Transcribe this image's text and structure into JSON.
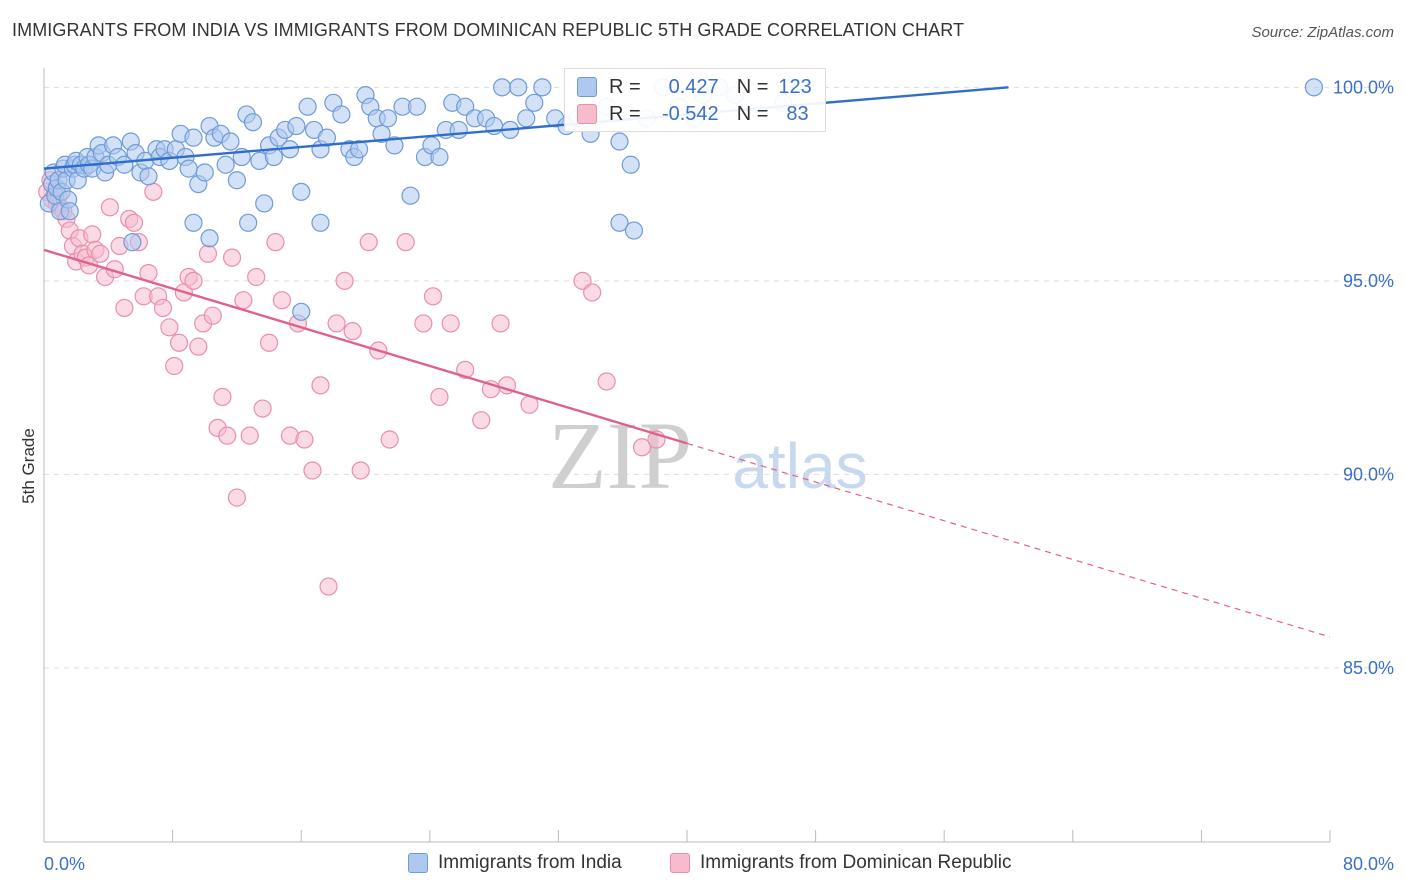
{
  "title": "IMMIGRANTS FROM INDIA VS IMMIGRANTS FROM DOMINICAN REPUBLIC 5TH GRADE CORRELATION CHART",
  "source": "Source: ZipAtlas.com",
  "watermark": {
    "zip": "ZIP",
    "atlas": "atlas"
  },
  "colors": {
    "india_fill": "#aec8f0",
    "india_stroke": "#6f9bd8",
    "india_line": "#2f6fcb",
    "dr_fill": "#f6bccd",
    "dr_stroke": "#ea8fab",
    "dr_line": "#e0628c",
    "axis_text": "#3b6fc9",
    "grid": "#dddddd"
  },
  "stats": {
    "india": {
      "r_label": "R =",
      "r_value": "0.427",
      "n_label": "N =",
      "n_value": "123"
    },
    "dr": {
      "r_label": "R =",
      "r_value": "-0.542",
      "n_label": "N =",
      "n_value": "83"
    }
  },
  "legend": {
    "india": "Immigrants from India",
    "dr": "Immigrants from Dominican Republic"
  },
  "chart_data": {
    "type": "scatter",
    "title": "IMMIGRANTS FROM INDIA VS IMMIGRANTS FROM DOMINICAN REPUBLIC 5TH GRADE CORRELATION CHART",
    "xlabel": "",
    "ylabel": "5th Grade",
    "xlim": [
      0,
      80
    ],
    "ylim": [
      80.5,
      100.5
    ],
    "x_tick_labels": [
      "0.0%",
      "80.0%"
    ],
    "y_ticks": [
      85,
      90,
      95,
      100
    ],
    "y_tick_labels": [
      "85.0%",
      "90.0%",
      "95.0%",
      "100.0%"
    ],
    "grid": true,
    "legend_position": "bottom",
    "series": [
      {
        "name": "Immigrants from India",
        "trendline": {
          "x": [
            0,
            60
          ],
          "y": [
            97.9,
            100.0
          ]
        },
        "points": [
          [
            0.3,
            97.0
          ],
          [
            0.5,
            97.5
          ],
          [
            0.6,
            97.8
          ],
          [
            0.7,
            97.2
          ],
          [
            0.8,
            97.4
          ],
          [
            0.9,
            97.6
          ],
          [
            1.0,
            96.8
          ],
          [
            1.1,
            97.3
          ],
          [
            1.2,
            97.9
          ],
          [
            1.3,
            98.0
          ],
          [
            1.4,
            97.6
          ],
          [
            1.5,
            97.1
          ],
          [
            1.6,
            96.8
          ],
          [
            1.8,
            97.9
          ],
          [
            1.9,
            98.0
          ],
          [
            2.0,
            98.1
          ],
          [
            2.1,
            97.6
          ],
          [
            2.3,
            98.0
          ],
          [
            2.5,
            97.9
          ],
          [
            2.7,
            98.2
          ],
          [
            2.8,
            98.0
          ],
          [
            3.0,
            97.9
          ],
          [
            3.2,
            98.2
          ],
          [
            3.4,
            98.5
          ],
          [
            3.6,
            98.3
          ],
          [
            3.8,
            97.8
          ],
          [
            4.0,
            98.0
          ],
          [
            4.3,
            98.5
          ],
          [
            4.6,
            98.2
          ],
          [
            5.0,
            98.0
          ],
          [
            5.4,
            98.6
          ],
          [
            5.7,
            98.3
          ],
          [
            6.0,
            97.8
          ],
          [
            6.3,
            98.1
          ],
          [
            6.5,
            97.7
          ],
          [
            7.0,
            98.4
          ],
          [
            7.2,
            98.2
          ],
          [
            7.5,
            98.4
          ],
          [
            7.8,
            98.1
          ],
          [
            8.2,
            98.4
          ],
          [
            8.5,
            98.8
          ],
          [
            8.8,
            98.2
          ],
          [
            9.0,
            97.9
          ],
          [
            9.3,
            98.7
          ],
          [
            9.6,
            97.5
          ],
          [
            10.0,
            97.8
          ],
          [
            10.3,
            99.0
          ],
          [
            10.6,
            98.7
          ],
          [
            11.0,
            98.8
          ],
          [
            11.3,
            98.0
          ],
          [
            11.6,
            98.6
          ],
          [
            12.0,
            97.6
          ],
          [
            12.3,
            98.2
          ],
          [
            12.6,
            99.3
          ],
          [
            13.0,
            99.1
          ],
          [
            13.4,
            98.1
          ],
          [
            13.7,
            97.0
          ],
          [
            14.0,
            98.5
          ],
          [
            14.3,
            98.2
          ],
          [
            14.6,
            98.7
          ],
          [
            15.0,
            98.9
          ],
          [
            15.3,
            98.4
          ],
          [
            15.7,
            99.0
          ],
          [
            16.0,
            97.3
          ],
          [
            16.4,
            99.5
          ],
          [
            16.8,
            98.9
          ],
          [
            17.2,
            98.4
          ],
          [
            17.6,
            98.7
          ],
          [
            18.0,
            99.6
          ],
          [
            18.5,
            99.3
          ],
          [
            19.0,
            98.4
          ],
          [
            19.3,
            98.2
          ],
          [
            19.6,
            98.4
          ],
          [
            20.0,
            99.8
          ],
          [
            20.3,
            99.5
          ],
          [
            20.7,
            99.2
          ],
          [
            21.0,
            98.8
          ],
          [
            21.4,
            99.2
          ],
          [
            21.8,
            98.5
          ],
          [
            22.3,
            99.5
          ],
          [
            22.8,
            97.2
          ],
          [
            23.2,
            99.5
          ],
          [
            23.7,
            98.2
          ],
          [
            24.1,
            98.5
          ],
          [
            24.6,
            98.2
          ],
          [
            25.0,
            98.9
          ],
          [
            25.4,
            99.6
          ],
          [
            25.8,
            98.9
          ],
          [
            26.2,
            99.5
          ],
          [
            26.8,
            99.2
          ],
          [
            27.5,
            99.2
          ],
          [
            28.0,
            99.0
          ],
          [
            28.5,
            100.0
          ],
          [
            29.0,
            98.9
          ],
          [
            29.5,
            100.0
          ],
          [
            30.0,
            99.2
          ],
          [
            30.5,
            99.6
          ],
          [
            31.0,
            100.0
          ],
          [
            31.8,
            99.2
          ],
          [
            32.5,
            99.0
          ],
          [
            33.2,
            99.2
          ],
          [
            34.0,
            98.8
          ],
          [
            35.0,
            99.5
          ],
          [
            35.8,
            98.6
          ],
          [
            36.5,
            98.0
          ],
          [
            37.5,
            99.2
          ],
          [
            38.5,
            100.0
          ],
          [
            39.5,
            99.5
          ],
          [
            40.5,
            99.2
          ],
          [
            41.0,
            99.8
          ],
          [
            42.0,
            100.0
          ],
          [
            43.0,
            99.8
          ],
          [
            46.0,
            99.6
          ],
          [
            47.0,
            100.0
          ],
          [
            5.5,
            96.0
          ],
          [
            9.3,
            96.5
          ],
          [
            10.3,
            96.1
          ],
          [
            12.7,
            96.5
          ],
          [
            17.2,
            96.5
          ],
          [
            35.8,
            96.5
          ],
          [
            36.7,
            96.3
          ],
          [
            16.0,
            94.2
          ],
          [
            79.0,
            100.0
          ]
        ]
      },
      {
        "name": "Immigrants from Dominican Republic",
        "trendline": {
          "x": [
            0,
            40
          ],
          "y": [
            95.8,
            90.8
          ]
        },
        "trendline_extension": {
          "x": [
            40,
            80
          ],
          "y": [
            90.8,
            85.8
          ]
        },
        "points": [
          [
            0.2,
            97.3
          ],
          [
            0.4,
            97.6
          ],
          [
            0.5,
            97.1
          ],
          [
            0.7,
            97.3
          ],
          [
            0.8,
            97.0
          ],
          [
            0.9,
            97.2
          ],
          [
            1.0,
            96.9
          ],
          [
            1.2,
            96.8
          ],
          [
            1.4,
            96.6
          ],
          [
            1.6,
            96.3
          ],
          [
            1.8,
            95.9
          ],
          [
            2.0,
            95.5
          ],
          [
            2.2,
            96.1
          ],
          [
            2.4,
            95.7
          ],
          [
            2.6,
            95.6
          ],
          [
            2.8,
            95.4
          ],
          [
            3.0,
            96.2
          ],
          [
            3.2,
            95.8
          ],
          [
            3.5,
            95.7
          ],
          [
            3.8,
            95.1
          ],
          [
            4.1,
            96.9
          ],
          [
            4.4,
            95.3
          ],
          [
            4.7,
            95.9
          ],
          [
            5.0,
            94.3
          ],
          [
            5.3,
            96.6
          ],
          [
            5.6,
            96.5
          ],
          [
            5.9,
            96.0
          ],
          [
            6.2,
            94.6
          ],
          [
            6.5,
            95.2
          ],
          [
            6.8,
            97.3
          ],
          [
            7.1,
            94.6
          ],
          [
            7.4,
            94.3
          ],
          [
            7.8,
            93.8
          ],
          [
            8.1,
            92.8
          ],
          [
            8.4,
            93.4
          ],
          [
            8.7,
            94.7
          ],
          [
            9.0,
            95.1
          ],
          [
            9.3,
            95.0
          ],
          [
            9.6,
            93.3
          ],
          [
            9.9,
            93.9
          ],
          [
            10.2,
            95.7
          ],
          [
            10.5,
            94.1
          ],
          [
            10.8,
            91.2
          ],
          [
            11.1,
            92.0
          ],
          [
            11.4,
            91.0
          ],
          [
            11.7,
            95.6
          ],
          [
            12.0,
            89.4
          ],
          [
            12.4,
            94.5
          ],
          [
            12.8,
            91.0
          ],
          [
            13.2,
            95.1
          ],
          [
            13.6,
            91.7
          ],
          [
            14.0,
            93.4
          ],
          [
            14.4,
            96.0
          ],
          [
            14.8,
            94.5
          ],
          [
            15.3,
            91.0
          ],
          [
            15.8,
            93.9
          ],
          [
            16.2,
            90.9
          ],
          [
            16.7,
            90.1
          ],
          [
            17.2,
            92.3
          ],
          [
            17.7,
            87.1
          ],
          [
            18.2,
            93.9
          ],
          [
            18.7,
            95.0
          ],
          [
            19.2,
            93.7
          ],
          [
            19.7,
            90.1
          ],
          [
            20.2,
            96.0
          ],
          [
            20.8,
            93.2
          ],
          [
            21.5,
            90.9
          ],
          [
            22.5,
            96.0
          ],
          [
            23.6,
            93.9
          ],
          [
            24.2,
            94.6
          ],
          [
            24.6,
            92.0
          ],
          [
            25.3,
            93.9
          ],
          [
            26.2,
            92.7
          ],
          [
            27.2,
            91.4
          ],
          [
            27.8,
            92.2
          ],
          [
            28.4,
            93.9
          ],
          [
            28.8,
            92.3
          ],
          [
            30.2,
            91.8
          ],
          [
            33.5,
            95.0
          ],
          [
            34.1,
            94.7
          ],
          [
            35.0,
            92.4
          ],
          [
            37.2,
            90.7
          ],
          [
            38.1,
            90.9
          ]
        ]
      }
    ]
  }
}
